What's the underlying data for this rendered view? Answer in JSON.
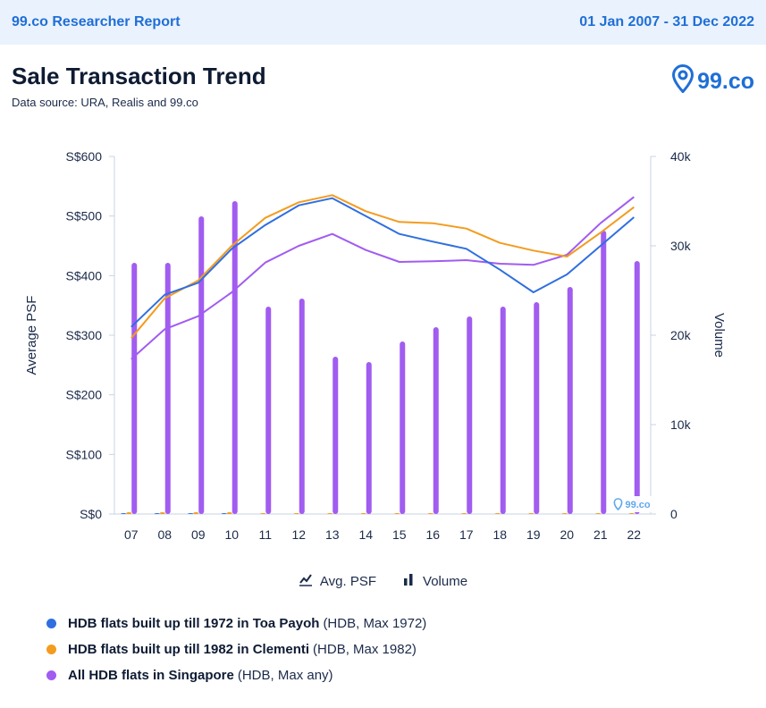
{
  "header": {
    "brand": "99.co Researcher Report",
    "date_range": "01 Jan 2007 - 31 Dec 2022"
  },
  "page": {
    "title": "Sale Transaction Trend",
    "source": "Data source: URA, Realis and 99.co",
    "logo_text": "99.co",
    "watermark_text": "99.co"
  },
  "legend": {
    "psf_label": "Avg. PSF",
    "volume_label": "Volume"
  },
  "series_list": [
    {
      "name": "HDB flats built up till 1972 in Toa Payoh",
      "meta": "(HDB, Max 1972)",
      "color": "#2f6fe0"
    },
    {
      "name": "HDB flats built up till 1982 in Clementi",
      "meta": "(HDB, Max 1982)",
      "color": "#f39c1f"
    },
    {
      "name": "All HDB flats in Singapore",
      "meta": "(HDB, Max any)",
      "color": "#a15cf0"
    }
  ],
  "chart_data": {
    "type": "bar",
    "categories": [
      "07",
      "08",
      "09",
      "10",
      "11",
      "12",
      "13",
      "14",
      "15",
      "16",
      "17",
      "18",
      "19",
      "20",
      "21",
      "22"
    ],
    "ylabel": "Average PSF",
    "y2label": "Volume",
    "yticks": [
      "S$0",
      "S$100",
      "S$200",
      "S$300",
      "S$400",
      "S$500",
      "S$600"
    ],
    "y2ticks": [
      "0",
      "10k",
      "20k",
      "30k",
      "40k"
    ],
    "ylim": [
      0,
      600
    ],
    "y2lim": [
      0,
      40000
    ],
    "psf_series": [
      {
        "name": "HDB flats built up till 1972 in Toa Payoh",
        "color": "#2f6fe0",
        "values": [
          314,
          368,
          388,
          445,
          485,
          518,
          530,
          500,
          470,
          457,
          445,
          410,
          372,
          402,
          450,
          498
        ]
      },
      {
        "name": "HDB flats built up till 1982 in Clementi",
        "color": "#f39c1f",
        "values": [
          295,
          362,
          392,
          450,
          497,
          523,
          535,
          508,
          490,
          488,
          479,
          455,
          442,
          432,
          472,
          515
        ]
      },
      {
        "name": "All HDB flats in Singapore",
        "color": "#a15cf0",
        "values": [
          260,
          310,
          332,
          372,
          422,
          450,
          470,
          443,
          423,
          424,
          426,
          420,
          418,
          435,
          488,
          532
        ]
      }
    ],
    "volume_series": [
      {
        "name": "Toa Payoh",
        "color": "#2f6fe0",
        "values": [
          100,
          100,
          100,
          100,
          0,
          0,
          0,
          0,
          0,
          0,
          0,
          0,
          0,
          0,
          0,
          0
        ]
      },
      {
        "name": "Clementi",
        "color": "#f39c1f",
        "values": [
          200,
          200,
          200,
          200,
          100,
          100,
          100,
          100,
          100,
          100,
          100,
          100,
          100,
          100,
          100,
          100
        ]
      },
      {
        "name": "All HDB flats in Singapore",
        "color": "#a15cf0",
        "values": [
          28100,
          28100,
          33300,
          35000,
          23200,
          24100,
          17600,
          17000,
          19300,
          20900,
          22100,
          23200,
          23700,
          25400,
          31700,
          28300
        ]
      }
    ],
    "grid": false,
    "legend_position": "bottom"
  }
}
